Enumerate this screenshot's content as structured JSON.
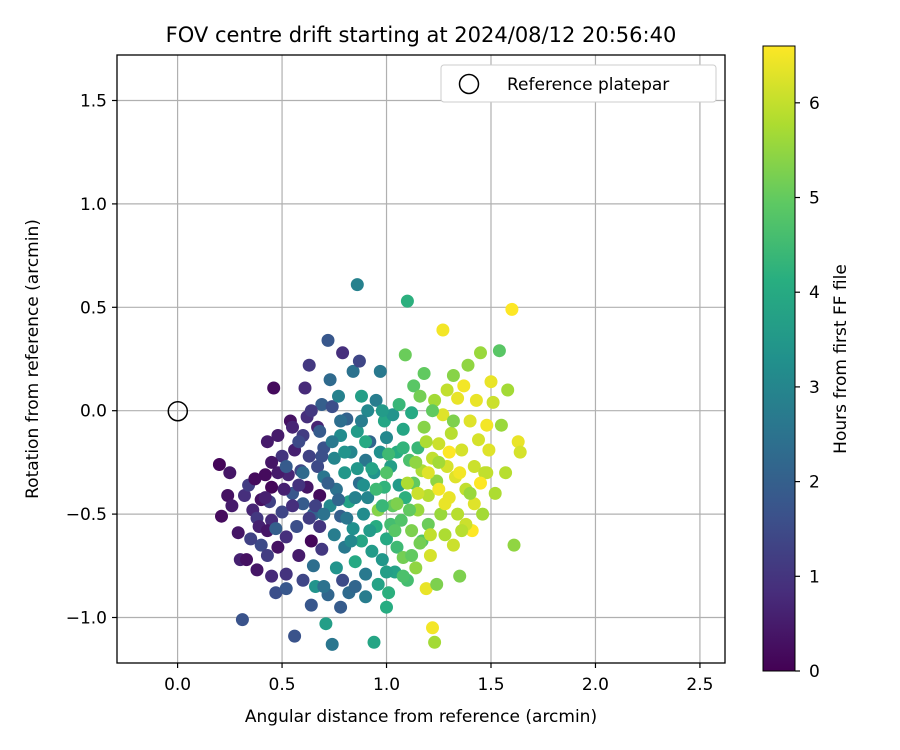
{
  "chart_data": {
    "type": "scatter",
    "title": "FOV centre drift starting at 2024/08/12 20:56:40",
    "xlabel": "Angular distance from reference (arcmin)",
    "ylabel": "Rotation from reference (arcmin)",
    "colorbar_label": "Hours from first FF file",
    "colormap": "viridis",
    "xlim": [
      -0.29,
      2.62
    ],
    "ylim": [
      -1.22,
      1.72
    ],
    "color_range": [
      0,
      6.6
    ],
    "x_ticks": [
      "0.0",
      "0.5",
      "1.0",
      "1.5",
      "2.0",
      "2.5"
    ],
    "y_ticks": [
      "−1.0",
      "−0.5",
      "0.0",
      "0.5",
      "1.0",
      "1.5"
    ],
    "colorbar_ticks": [
      "0",
      "1",
      "2",
      "3",
      "4",
      "5",
      "6"
    ],
    "grid": true,
    "legend_position": "top-right",
    "reference": {
      "name": "Reference platepar",
      "x": 0.0,
      "y": 0.0,
      "marker": "open-circle",
      "color": "#000000"
    },
    "points": [
      [
        0.2,
        -0.26,
        0.1
      ],
      [
        0.21,
        -0.51,
        0.2
      ],
      [
        0.25,
        -0.3,
        0.4
      ],
      [
        0.24,
        -0.41,
        0.3
      ],
      [
        0.26,
        -0.46,
        0.5
      ],
      [
        0.29,
        -0.59,
        0.4
      ],
      [
        0.3,
        -0.72,
        0.6
      ],
      [
        0.31,
        -1.01,
        1.7
      ],
      [
        0.33,
        -0.72,
        0.3
      ],
      [
        0.32,
        -0.41,
        0.9
      ],
      [
        0.34,
        -0.36,
        1.2
      ],
      [
        0.36,
        -0.48,
        0.7
      ],
      [
        0.38,
        -0.52,
        1.1
      ],
      [
        0.39,
        -0.56,
        0.6
      ],
      [
        0.4,
        -0.65,
        1.5
      ],
      [
        0.38,
        -0.77,
        0.4
      ],
      [
        0.42,
        -0.31,
        0.2
      ],
      [
        0.44,
        -0.44,
        1.3
      ],
      [
        0.45,
        -0.53,
        0.8
      ],
      [
        0.43,
        -0.15,
        0.5
      ],
      [
        0.45,
        -0.37,
        0.1
      ],
      [
        0.46,
        0.11,
        0.2
      ],
      [
        0.47,
        -0.88,
        1.6
      ],
      [
        0.48,
        -0.66,
        0.3
      ],
      [
        0.5,
        -0.22,
        1.0
      ],
      [
        0.5,
        -0.49,
        1.4
      ],
      [
        0.52,
        -0.61,
        0.9
      ],
      [
        0.52,
        -0.79,
        1.0
      ],
      [
        0.54,
        -0.05,
        0.3
      ],
      [
        0.53,
        -0.31,
        0.7
      ],
      [
        0.55,
        -0.4,
        1.8
      ],
      [
        0.56,
        -0.19,
        0.6
      ],
      [
        0.56,
        -1.09,
        1.7
      ],
      [
        0.57,
        -0.56,
        1.6
      ],
      [
        0.58,
        -0.7,
        0.5
      ],
      [
        0.59,
        -0.29,
        1.4
      ],
      [
        0.6,
        -0.45,
        1.9
      ],
      [
        0.6,
        -0.12,
        1.2
      ],
      [
        0.61,
        0.11,
        0.8
      ],
      [
        0.62,
        -0.03,
        0.9
      ],
      [
        0.62,
        -0.37,
        0.4
      ],
      [
        0.63,
        -0.22,
        1.3
      ],
      [
        0.63,
        0.22,
        1.1
      ],
      [
        0.64,
        -0.63,
        0.1
      ],
      [
        0.64,
        -0.94,
        1.8
      ],
      [
        0.65,
        -0.5,
        2.1
      ],
      [
        0.65,
        -0.75,
        2.4
      ],
      [
        0.66,
        -0.85,
        3.4
      ],
      [
        0.67,
        -0.08,
        0.7
      ],
      [
        0.67,
        -0.27,
        1.5
      ],
      [
        0.68,
        -0.41,
        0.2
      ],
      [
        0.68,
        -0.56,
        1.0
      ],
      [
        0.69,
        0.03,
        2.0
      ],
      [
        0.69,
        -0.67,
        1.1
      ],
      [
        0.7,
        -0.32,
        2.6
      ],
      [
        0.7,
        -0.18,
        1.7
      ],
      [
        0.71,
        -1.03,
        3.7
      ],
      [
        0.72,
        0.34,
        1.8
      ],
      [
        0.72,
        -0.89,
        2.2
      ],
      [
        0.73,
        -0.46,
        3.1
      ],
      [
        0.73,
        0.15,
        2.3
      ],
      [
        0.74,
        0.02,
        1.6
      ],
      [
        0.74,
        -1.13,
        2.6
      ],
      [
        0.75,
        -0.6,
        2.8
      ],
      [
        0.75,
        -0.23,
        3.0
      ],
      [
        0.76,
        -0.76,
        3.4
      ],
      [
        0.76,
        -0.38,
        2.5
      ],
      [
        0.77,
        0.07,
        2.9
      ],
      [
        0.78,
        -0.12,
        3.2
      ],
      [
        0.78,
        -0.51,
        2.0
      ],
      [
        0.79,
        0.28,
        0.9
      ],
      [
        0.79,
        -0.82,
        1.5
      ],
      [
        0.8,
        -0.3,
        3.5
      ],
      [
        0.8,
        -0.66,
        2.7
      ],
      [
        0.81,
        -0.04,
        2.1
      ],
      [
        0.82,
        -0.88,
        2.3
      ],
      [
        0.82,
        -0.44,
        3.8
      ],
      [
        0.83,
        -0.2,
        3.0
      ],
      [
        0.84,
        0.19,
        2.5
      ],
      [
        0.84,
        -0.57,
        3.3
      ],
      [
        0.85,
        -0.73,
        4.0
      ],
      [
        0.86,
        0.61,
        2.9
      ],
      [
        0.86,
        -0.1,
        3.6
      ],
      [
        0.87,
        -0.35,
        2.4
      ],
      [
        0.87,
        0.24,
        1.4
      ],
      [
        0.88,
        -0.63,
        3.9
      ],
      [
        0.88,
        0.07,
        3.7
      ],
      [
        0.89,
        -0.5,
        3.2
      ],
      [
        0.9,
        -0.24,
        2.6
      ],
      [
        0.9,
        -0.79,
        2.7
      ],
      [
        0.91,
        0.0,
        3.1
      ],
      [
        0.91,
        -0.42,
        3.0
      ],
      [
        0.92,
        -0.15,
        2.2
      ],
      [
        0.93,
        -0.68,
        3.6
      ],
      [
        0.94,
        -1.12,
        3.9
      ],
      [
        0.94,
        -0.3,
        3.4
      ],
      [
        0.95,
        0.05,
        2.8
      ],
      [
        0.95,
        -0.56,
        4.1
      ],
      [
        0.96,
        -0.84,
        3.8
      ],
      [
        0.96,
        -0.48,
        5.4
      ],
      [
        0.97,
        0.19,
        2.7
      ],
      [
        0.97,
        -0.2,
        3.3
      ],
      [
        0.98,
        -0.72,
        3.5
      ],
      [
        0.99,
        -0.05,
        3.9
      ],
      [
        0.99,
        -0.37,
        4.3
      ],
      [
        1.0,
        -0.62,
        4.0
      ],
      [
        1.0,
        -0.13,
        3.1
      ],
      [
        1.01,
        -0.88,
        4.2
      ],
      [
        1.02,
        -0.27,
        3.7
      ],
      [
        1.02,
        -0.55,
        4.6
      ],
      [
        1.03,
        -0.02,
        3.4
      ],
      [
        1.03,
        -0.46,
        5.0
      ],
      [
        1.04,
        -0.78,
        3.8
      ],
      [
        1.05,
        -0.2,
        4.1
      ],
      [
        1.05,
        -0.66,
        4.5
      ],
      [
        1.06,
        -0.36,
        3.6
      ],
      [
        1.06,
        0.03,
        4.4
      ],
      [
        1.07,
        -0.53,
        4.8
      ],
      [
        1.08,
        -0.71,
        5.2
      ],
      [
        1.08,
        -0.09,
        3.9
      ],
      [
        1.09,
        0.27,
        5.1
      ],
      [
        1.09,
        -0.42,
        4.2
      ],
      [
        1.1,
        0.53,
        4.2
      ],
      [
        1.1,
        -0.82,
        4.6
      ],
      [
        1.11,
        -0.24,
        4.7
      ],
      [
        1.12,
        -0.58,
        5.3
      ],
      [
        1.12,
        -0.01,
        4.0
      ],
      [
        1.13,
        -0.35,
        5.0
      ],
      [
        1.13,
        0.12,
        4.9
      ],
      [
        1.14,
        -0.76,
        5.5
      ],
      [
        1.15,
        -0.18,
        4.4
      ],
      [
        1.15,
        -0.48,
        5.6
      ],
      [
        1.16,
        0.07,
        5.2
      ],
      [
        1.17,
        -0.63,
        4.8
      ],
      [
        1.17,
        -0.29,
        5.8
      ],
      [
        1.18,
        0.18,
        5.0
      ],
      [
        1.18,
        -0.08,
        5.4
      ],
      [
        1.19,
        -0.86,
        6.4
      ],
      [
        1.2,
        -0.41,
        5.9
      ],
      [
        1.2,
        -0.55,
        5.1
      ],
      [
        1.21,
        -0.7,
        6.2
      ],
      [
        1.22,
        -0.23,
        6.0
      ],
      [
        1.22,
        -1.05,
        6.5
      ],
      [
        1.23,
        -1.12,
        5.7
      ],
      [
        1.23,
        0.05,
        5.7
      ],
      [
        1.24,
        -0.34,
        5.5
      ],
      [
        1.24,
        -0.84,
        5.3
      ],
      [
        1.25,
        -0.16,
        6.1
      ],
      [
        1.26,
        -0.5,
        5.6
      ],
      [
        1.27,
        0.39,
        6.5
      ],
      [
        1.27,
        -0.02,
        6.3
      ],
      [
        1.28,
        -0.6,
        5.8
      ],
      [
        1.29,
        -0.27,
        6.2
      ],
      [
        1.29,
        0.1,
        6.0
      ],
      [
        1.3,
        -0.42,
        6.4
      ],
      [
        1.31,
        -0.11,
        5.9
      ],
      [
        1.32,
        -0.65,
        6.1
      ],
      [
        1.32,
        0.17,
        5.4
      ],
      [
        1.33,
        -0.32,
        6.3
      ],
      [
        1.34,
        0.06,
        6.4
      ],
      [
        1.34,
        -0.5,
        5.9
      ],
      [
        1.35,
        -0.8,
        5.3
      ],
      [
        1.36,
        -0.19,
        6.2
      ],
      [
        1.37,
        0.12,
        6.5
      ],
      [
        1.38,
        -0.38,
        6.0
      ],
      [
        1.39,
        0.22,
        5.5
      ],
      [
        1.4,
        -0.05,
        6.3
      ],
      [
        1.41,
        -0.58,
        6.6
      ],
      [
        1.42,
        -0.27,
        6.1
      ],
      [
        1.43,
        0.05,
        6.4
      ],
      [
        1.44,
        -0.14,
        6.2
      ],
      [
        1.45,
        0.28,
        5.6
      ],
      [
        1.46,
        -0.5,
        5.7
      ],
      [
        1.47,
        -0.3,
        6.0
      ],
      [
        1.48,
        -0.07,
        6.5
      ],
      [
        1.49,
        -0.19,
        6.3
      ],
      [
        1.5,
        0.14,
        6.4
      ],
      [
        1.51,
        0.04,
        6.1
      ],
      [
        1.52,
        -0.4,
        5.8
      ],
      [
        1.54,
        0.29,
        4.9
      ],
      [
        1.55,
        -0.07,
        5.6
      ],
      [
        1.57,
        -0.3,
        5.9
      ],
      [
        1.58,
        0.1,
        5.7
      ],
      [
        1.6,
        0.49,
        6.6
      ],
      [
        1.61,
        -0.65,
        5.5
      ],
      [
        1.63,
        -0.15,
        6.4
      ],
      [
        1.64,
        -0.2,
        6.2
      ],
      [
        1.48,
        -0.3,
        6.0
      ],
      [
        1.45,
        -0.35,
        6.6
      ],
      [
        1.42,
        -0.45,
        6.3
      ],
      [
        1.4,
        -0.4,
        5.6
      ],
      [
        1.38,
        -0.55,
        6.1
      ],
      [
        1.36,
        -0.58,
        5.9
      ],
      [
        1.28,
        -0.45,
        6.4
      ],
      [
        1.25,
        -0.25,
        5.7
      ],
      [
        1.21,
        -0.6,
        6.0
      ],
      [
        1.19,
        -0.15,
        5.8
      ],
      [
        1.16,
        -0.64,
        5.2
      ],
      [
        1.14,
        -0.25,
        5.5
      ],
      [
        1.11,
        -0.48,
        5.0
      ],
      [
        1.04,
        -0.58,
        4.9
      ],
      [
        1.01,
        -0.21,
        4.5
      ],
      [
        0.98,
        -0.46,
        4.4
      ],
      [
        0.93,
        -0.28,
        3.8
      ],
      [
        0.92,
        -0.58,
        3.6
      ],
      [
        0.89,
        -0.36,
        3.3
      ],
      [
        0.85,
        -0.42,
        2.9
      ],
      [
        0.83,
        -0.63,
        3.1
      ],
      [
        0.81,
        -0.52,
        2.6
      ],
      [
        0.77,
        -0.43,
        2.2
      ],
      [
        0.72,
        -0.35,
        2.0
      ],
      [
        0.69,
        -0.22,
        1.6
      ],
      [
        0.66,
        -0.46,
        1.3
      ],
      [
        0.63,
        -0.52,
        1.2
      ],
      [
        0.58,
        -0.36,
        1.0
      ],
      [
        0.55,
        -0.46,
        0.9
      ],
      [
        0.51,
        -0.38,
        0.6
      ],
      [
        0.48,
        -0.3,
        0.5
      ],
      [
        0.43,
        -0.58,
        0.4
      ],
      [
        0.4,
        -0.43,
        0.3
      ],
      [
        0.37,
        -0.33,
        0.2
      ],
      [
        0.35,
        -0.62,
        1.3
      ],
      [
        0.47,
        -0.57,
        2.0
      ],
      [
        0.52,
        -0.27,
        1.9
      ],
      [
        0.58,
        -0.15,
        1.5
      ],
      [
        0.6,
        -0.3,
        2.3
      ],
      [
        0.7,
        -0.5,
        2.5
      ],
      [
        0.74,
        -0.15,
        2.7
      ],
      [
        0.8,
        -0.2,
        3.4
      ],
      [
        0.86,
        -0.28,
        3.5
      ],
      [
        0.9,
        -0.15,
        4.0
      ],
      [
        0.95,
        -0.38,
        4.5
      ],
      [
        1.0,
        -0.3,
        4.8
      ],
      [
        1.05,
        -0.45,
        5.3
      ],
      [
        1.1,
        -0.35,
        5.8
      ],
      [
        1.15,
        -0.4,
        6.1
      ],
      [
        1.2,
        -0.3,
        6.3
      ],
      [
        1.25,
        -0.38,
        6.5
      ],
      [
        1.3,
        -0.2,
        6.6
      ],
      [
        1.35,
        -0.3,
        6.5
      ],
      [
        1.32,
        -0.05,
        5.3
      ],
      [
        1.22,
        0.0,
        5.0
      ],
      [
        1.08,
        -0.18,
        4.3
      ],
      [
        0.98,
        0.0,
        3.6
      ],
      [
        0.88,
        -0.05,
        2.8
      ],
      [
        0.78,
        -0.05,
        2.4
      ],
      [
        0.68,
        -0.1,
        1.9
      ],
      [
        0.64,
        0.0,
        1.1
      ],
      [
        0.55,
        -0.08,
        0.7
      ],
      [
        0.48,
        -0.12,
        0.5
      ],
      [
        0.45,
        -0.25,
        0.4
      ],
      [
        0.42,
        -0.42,
        0.6
      ],
      [
        0.85,
        -0.85,
        2.2
      ],
      [
        0.9,
        -0.9,
        2.8
      ],
      [
        1.0,
        -0.78,
        3.7
      ],
      [
        1.08,
        -0.8,
        4.7
      ],
      [
        1.12,
        -0.7,
        5.0
      ],
      [
        1.0,
        -0.95,
        4.1
      ],
      [
        0.78,
        -0.95,
        1.9
      ],
      [
        0.7,
        -0.85,
        2.5
      ],
      [
        0.6,
        -0.82,
        1.4
      ],
      [
        0.52,
        -0.86,
        1.8
      ],
      [
        0.45,
        -0.8,
        0.8
      ],
      [
        0.43,
        -0.7,
        1.2
      ]
    ]
  }
}
